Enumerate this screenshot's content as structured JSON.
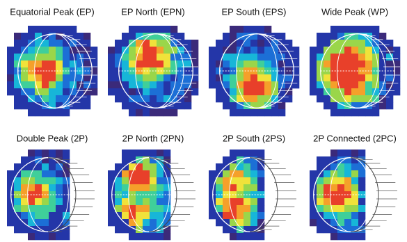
{
  "panels": [
    {
      "title": "Equatorial Peak (EP)"
    },
    {
      "title": "EP North (EPN)"
    },
    {
      "title": "EP South (EPS)"
    },
    {
      "title": "Wide Peak (WP)"
    },
    {
      "title": "Double Peak (2P)"
    },
    {
      "title": "2P North (2PN)"
    },
    {
      "title": "2P South (2PS)"
    },
    {
      "title": "2P Connected (2PC)"
    }
  ]
}
